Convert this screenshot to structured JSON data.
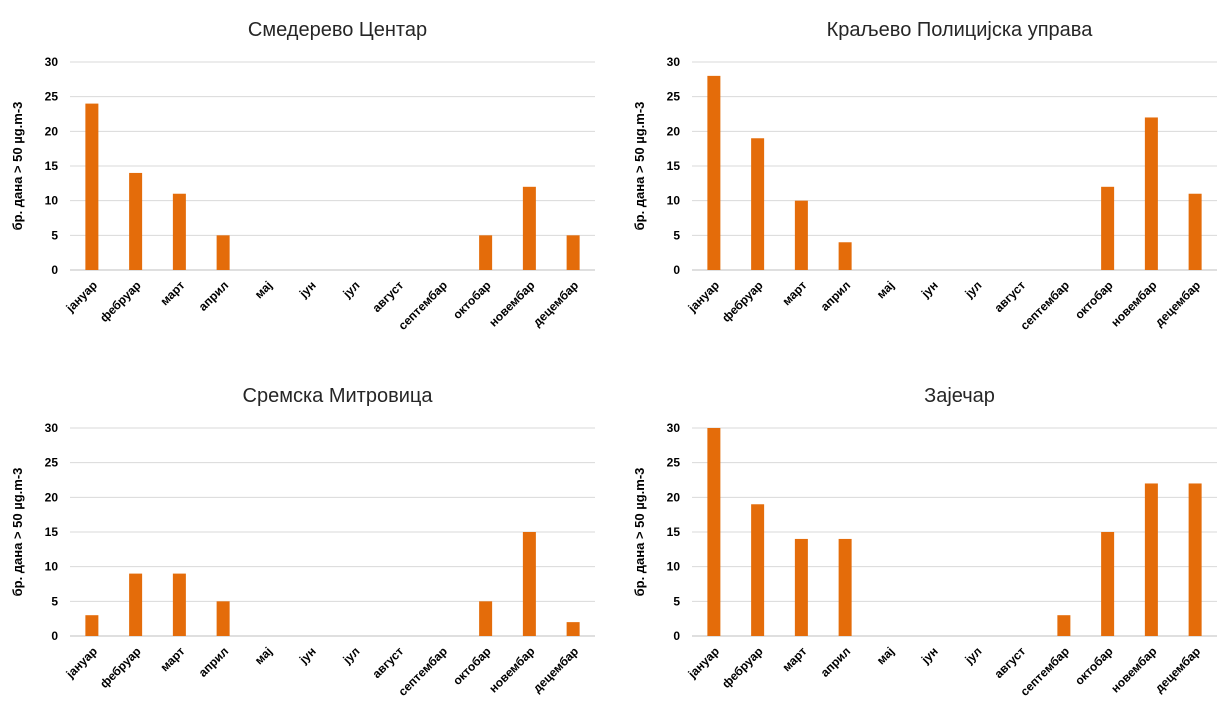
{
  "chart_data": [
    {
      "type": "bar",
      "title": "Смедерево Центар",
      "ylabel": "бр. дана > 50 µg.m-3",
      "xlabel": "",
      "categories": [
        "јануар",
        "фебруар",
        "март",
        "април",
        "мај",
        "јун",
        "јул",
        "август",
        "септембар",
        "октобар",
        "новембар",
        "децембар"
      ],
      "values": [
        24,
        14,
        11,
        5,
        0,
        0,
        0,
        0,
        0,
        5,
        12,
        5
      ],
      "ylim": [
        0,
        30
      ],
      "yticks": [
        0,
        5,
        10,
        15,
        20,
        25,
        30
      ],
      "grid": true,
      "legend": "none",
      "color": "#E46C0A"
    },
    {
      "type": "bar",
      "title": "Краљево Полицијска управа",
      "ylabel": "бр. дана > 50 µg.m-3",
      "xlabel": "",
      "categories": [
        "јануар",
        "фебруар",
        "март",
        "април",
        "мај",
        "јун",
        "јул",
        "август",
        "септембар",
        "октобар",
        "новембар",
        "децембар"
      ],
      "values": [
        28,
        19,
        10,
        4,
        0,
        0,
        0,
        0,
        0,
        12,
        22,
        11
      ],
      "ylim": [
        0,
        30
      ],
      "yticks": [
        0,
        5,
        10,
        15,
        20,
        25,
        30
      ],
      "grid": true,
      "legend": "none",
      "color": "#E46C0A"
    },
    {
      "type": "bar",
      "title": "Сремска Митровица",
      "ylabel": "бр. дана > 50 µg.m-3",
      "xlabel": "",
      "categories": [
        "јануар",
        "фебруар",
        "март",
        "април",
        "мај",
        "јун",
        "јул",
        "август",
        "септембар",
        "октобар",
        "новембар",
        "децембар"
      ],
      "values": [
        3,
        9,
        9,
        5,
        0,
        0,
        0,
        0,
        0,
        5,
        15,
        2
      ],
      "ylim": [
        0,
        30
      ],
      "yticks": [
        0,
        5,
        10,
        15,
        20,
        25,
        30
      ],
      "grid": true,
      "legend": "none",
      "color": "#E46C0A"
    },
    {
      "type": "bar",
      "title": "Зајечар",
      "ylabel": "бр. дана > 50 µg.m-3",
      "xlabel": "",
      "categories": [
        "јануар",
        "фебруар",
        "март",
        "април",
        "мај",
        "јун",
        "јул",
        "август",
        "септембар",
        "октобар",
        "новембар",
        "децембар"
      ],
      "values": [
        30,
        19,
        14,
        14,
        0,
        0,
        0,
        0,
        3,
        15,
        22,
        22
      ],
      "ylim": [
        0,
        30
      ],
      "yticks": [
        0,
        5,
        10,
        15,
        20,
        25,
        30
      ],
      "grid": true,
      "legend": "none",
      "color": "#E46C0A"
    }
  ]
}
